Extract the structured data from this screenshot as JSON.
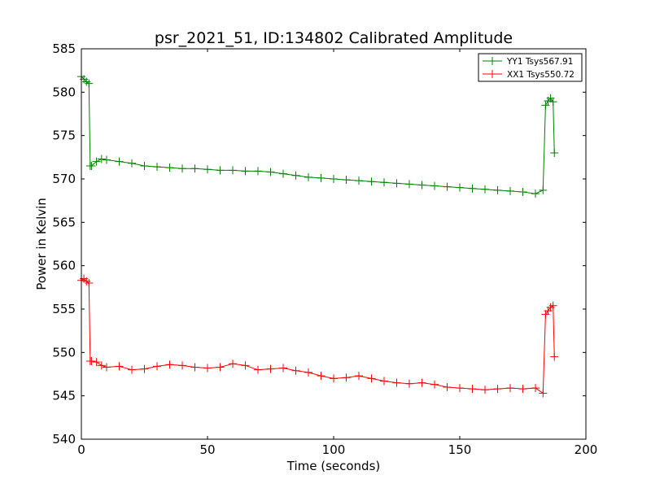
{
  "chart_data": {
    "type": "line",
    "title": "psr_2021_51, ID:134802 Calibrated Amplitude",
    "xlabel": "Time (seconds)",
    "ylabel": "Power in Kelvin",
    "xlim": [
      0,
      200
    ],
    "ylim": [
      540,
      585
    ],
    "xticks": [
      0,
      50,
      100,
      150,
      200
    ],
    "yticks": [
      540,
      545,
      550,
      555,
      560,
      565,
      570,
      575,
      580,
      585
    ],
    "grid": false,
    "legend_position": "top-right",
    "marker": "+",
    "series": [
      {
        "name": "YY1 Tsys567.91",
        "color": "#008000",
        "x": [
          0,
          1,
          2,
          3,
          3.5,
          4,
          6,
          8,
          10,
          15,
          20,
          25,
          30,
          35,
          40,
          45,
          50,
          55,
          60,
          65,
          70,
          75,
          80,
          85,
          90,
          95,
          100,
          105,
          110,
          115,
          120,
          125,
          130,
          135,
          140,
          145,
          150,
          155,
          160,
          165,
          170,
          175,
          180,
          183,
          184,
          185,
          186,
          187,
          187.5
        ],
        "y": [
          581.8,
          581.5,
          581.2,
          581.0,
          571.5,
          571.5,
          572.0,
          572.3,
          572.2,
          572.0,
          571.8,
          571.5,
          571.4,
          571.3,
          571.2,
          571.2,
          571.1,
          571.0,
          571.0,
          570.9,
          570.9,
          570.8,
          570.6,
          570.4,
          570.2,
          570.1,
          570.0,
          569.9,
          569.8,
          569.7,
          569.6,
          569.5,
          569.4,
          569.3,
          569.2,
          569.1,
          569.0,
          568.9,
          568.8,
          568.7,
          568.6,
          568.5,
          568.3,
          568.7,
          578.5,
          579.0,
          579.3,
          578.9,
          573.0
        ]
      },
      {
        "name": "XX1 Tsys550.72",
        "color": "#ff0000",
        "x": [
          0,
          1,
          2,
          3,
          3.5,
          4,
          6,
          8,
          10,
          15,
          20,
          25,
          30,
          35,
          40,
          45,
          50,
          55,
          60,
          65,
          70,
          75,
          80,
          85,
          90,
          95,
          100,
          105,
          110,
          115,
          120,
          125,
          130,
          135,
          140,
          145,
          150,
          155,
          160,
          165,
          170,
          175,
          180,
          183,
          184,
          185,
          186,
          187,
          187.5
        ],
        "y": [
          558.3,
          558.5,
          558.2,
          558.0,
          549.0,
          549.0,
          548.9,
          548.5,
          548.3,
          548.4,
          548.0,
          548.1,
          548.4,
          548.6,
          548.5,
          548.3,
          548.2,
          548.3,
          548.7,
          548.5,
          548.0,
          548.1,
          548.2,
          547.9,
          547.7,
          547.3,
          547.0,
          547.1,
          547.3,
          547.0,
          546.7,
          546.5,
          546.4,
          546.5,
          546.3,
          546.0,
          545.9,
          545.8,
          545.7,
          545.8,
          545.9,
          545.8,
          545.9,
          545.3,
          554.4,
          554.8,
          555.2,
          555.4,
          549.5
        ]
      }
    ]
  }
}
